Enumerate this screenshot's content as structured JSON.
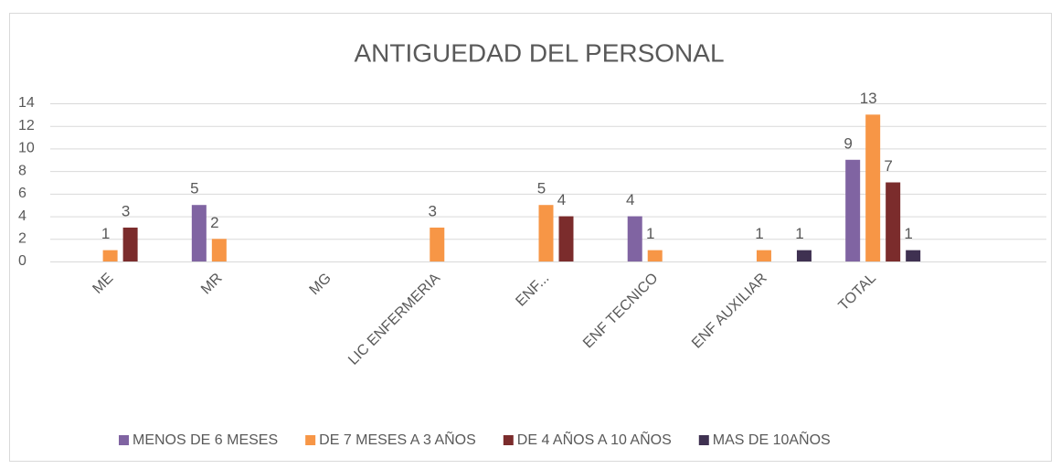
{
  "chart_data": {
    "type": "bar",
    "title": "ANTIGUEDAD DEL PERSONAL",
    "categories": [
      "ME",
      "MR",
      "MG",
      "LIC ENFERMERIA",
      "ENF...",
      "ENF TECNICO",
      "ENF AUXILIAR",
      "TOTAL",
      null
    ],
    "series": [
      {
        "name": "MENOS DE 6 MESES",
        "color": "#8064a2",
        "values": [
          null,
          5,
          null,
          null,
          null,
          4,
          null,
          9,
          null
        ]
      },
      {
        "name": "DE 7 MESES A 3 AÑOS",
        "color": "#f79646",
        "values": [
          1,
          2,
          null,
          3,
          5,
          1,
          1,
          13,
          null
        ]
      },
      {
        "name": "DE 4 AÑOS A 10 AÑOS",
        "color": "#7b2c2c",
        "values": [
          3,
          null,
          null,
          null,
          4,
          null,
          null,
          7,
          null
        ]
      },
      {
        "name": "MAS DE 10AÑOS",
        "color": "#3f3151",
        "values": [
          null,
          null,
          null,
          null,
          null,
          null,
          1,
          1,
          null
        ]
      }
    ],
    "ylim": [
      0,
      14
    ],
    "yticks": [
      0,
      2,
      4,
      6,
      8,
      10,
      12,
      14
    ],
    "grid": true,
    "legend": "bottom"
  }
}
